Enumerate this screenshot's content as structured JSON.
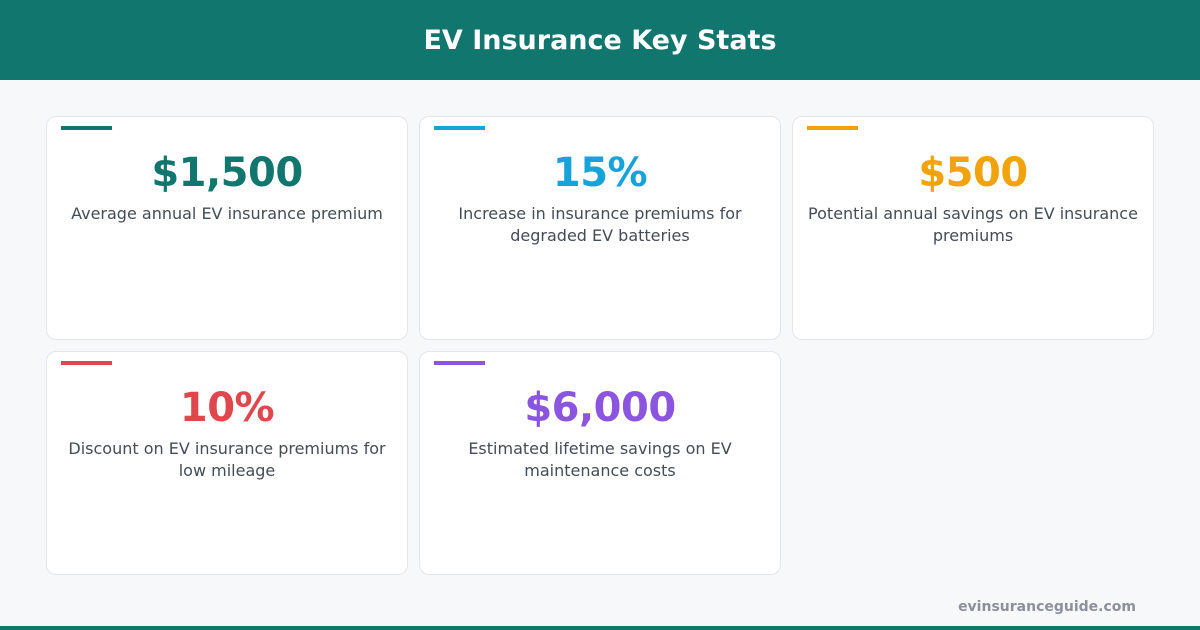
{
  "header": {
    "title": "EV Insurance Key Stats"
  },
  "cards": [
    {
      "value": "$1,500",
      "label": "Average annual EV insurance premium",
      "color": "#10766e"
    },
    {
      "value": "15%",
      "label": "Increase in insurance premiums for degraded EV batteries",
      "color": "#16a3d9"
    },
    {
      "value": "$500",
      "label": "Potential annual savings on EV insurance premiums",
      "color": "#f0a30a"
    },
    {
      "value": "10%",
      "label": "Discount on EV insurance premiums for low mileage",
      "color": "#e0474c"
    },
    {
      "value": "$6,000",
      "label": "Estimated lifetime savings on EV maintenance costs",
      "color": "#8b55e0"
    }
  ],
  "footer": {
    "source": "evinsuranceguide.com"
  }
}
